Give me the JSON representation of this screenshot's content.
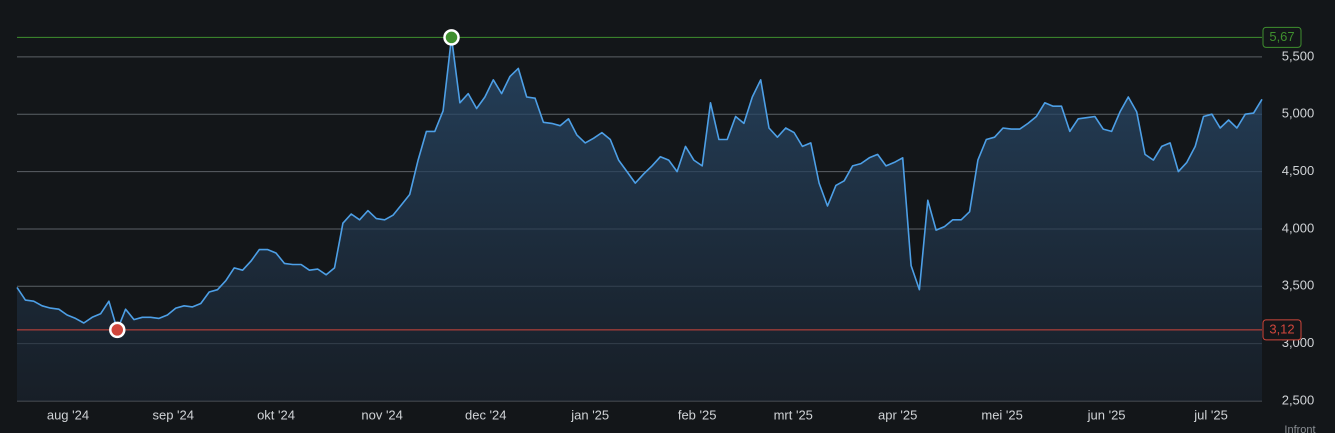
{
  "chart_data": {
    "type": "area",
    "credit": "Infront",
    "series": [
      {
        "color": "#4d9fe6",
        "values": [
          3.49,
          3.38,
          3.37,
          3.33,
          3.31,
          3.3,
          3.25,
          3.22,
          3.18,
          3.23,
          3.26,
          3.37,
          3.12,
          3.3,
          3.21,
          3.23,
          3.23,
          3.22,
          3.25,
          3.31,
          3.33,
          3.32,
          3.35,
          3.45,
          3.47,
          3.55,
          3.66,
          3.64,
          3.72,
          3.82,
          3.82,
          3.79,
          3.7,
          3.69,
          3.69,
          3.64,
          3.65,
          3.6,
          3.66,
          4.05,
          4.13,
          4.08,
          4.16,
          4.09,
          4.08,
          4.12,
          4.21,
          4.3,
          4.6,
          4.85,
          4.85,
          5.03,
          5.67,
          5.1,
          5.18,
          5.05,
          5.15,
          5.3,
          5.18,
          5.33,
          5.4,
          5.15,
          5.14,
          4.93,
          4.92,
          4.9,
          4.96,
          4.82,
          4.75,
          4.79,
          4.84,
          4.78,
          4.6,
          4.5,
          4.4,
          4.48,
          4.55,
          4.63,
          4.6,
          4.5,
          4.72,
          4.6,
          4.55,
          5.1,
          4.78,
          4.78,
          4.98,
          4.92,
          5.15,
          5.3,
          4.88,
          4.8,
          4.88,
          4.84,
          4.72,
          4.75,
          4.4,
          4.2,
          4.38,
          4.42,
          4.55,
          4.57,
          4.62,
          4.65,
          4.55,
          4.58,
          4.62,
          3.68,
          3.47,
          4.25,
          3.99,
          4.02,
          4.08,
          4.08,
          4.15,
          4.6,
          4.78,
          4.8,
          4.88,
          4.87,
          4.87,
          4.92,
          4.98,
          5.1,
          5.07,
          5.07,
          4.85,
          4.96,
          4.97,
          4.98,
          4.87,
          4.85,
          5.02,
          5.15,
          5.02,
          4.65,
          4.6,
          4.72,
          4.75,
          4.5,
          4.58,
          4.72,
          4.98,
          5.0,
          4.88,
          4.95,
          4.88,
          5.0,
          5.01,
          5.13
        ]
      }
    ],
    "xlim": [
      0,
      149
    ],
    "xticks": [
      {
        "value": 6.1,
        "label": "aug '24"
      },
      {
        "value": 18.7,
        "label": "sep '24"
      },
      {
        "value": 31,
        "label": "okt '24"
      },
      {
        "value": 43.7,
        "label": "nov '24"
      },
      {
        "value": 56.1,
        "label": "dec '24"
      },
      {
        "value": 68.6,
        "label": "jan '25"
      },
      {
        "value": 81.4,
        "label": "feb '25"
      },
      {
        "value": 92.9,
        "label": "mrt '25"
      },
      {
        "value": 105.4,
        "label": "apr '25"
      },
      {
        "value": 117.9,
        "label": "mei '25"
      },
      {
        "value": 130.4,
        "label": "jun '25"
      },
      {
        "value": 142.9,
        "label": "jul '25"
      }
    ],
    "ylim": [
      2.5,
      5.9
    ],
    "yticks": [
      {
        "value": 2.5,
        "label": "2,500"
      },
      {
        "value": 3,
        "label": "3,000"
      },
      {
        "value": 3.5,
        "label": "3,500"
      },
      {
        "value": 4,
        "label": "4,000"
      },
      {
        "value": 4.5,
        "label": "4,500"
      },
      {
        "value": 5,
        "label": "5,000"
      },
      {
        "value": 5.5,
        "label": "5,500"
      }
    ],
    "grid": true,
    "reference_lines": [
      {
        "value": 5.67,
        "label": "5,67",
        "color": "#3f8f2e",
        "at_index": 52
      },
      {
        "value": 3.12,
        "label": "3,12",
        "color": "#d0463c",
        "at_index": 12
      }
    ]
  }
}
